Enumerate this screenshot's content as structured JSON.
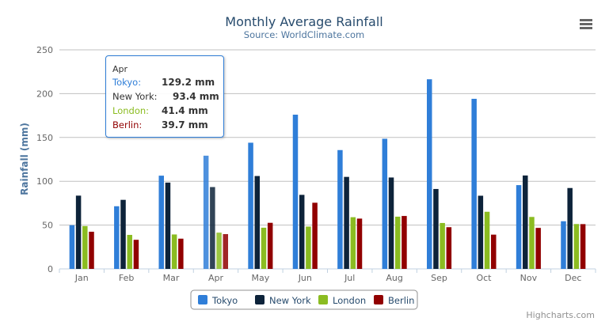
{
  "chart_data": {
    "type": "bar",
    "title": "Monthly Average Rainfall",
    "subtitle": "Source: WorldClimate.com",
    "xlabel": "",
    "ylabel": "Rainfall (mm)",
    "ylim": [
      0,
      250
    ],
    "yticks": [
      "0",
      "50",
      "100",
      "150",
      "200",
      "250"
    ],
    "grid": true,
    "legend_position": "bottom",
    "categories": [
      "Jan",
      "Feb",
      "Mar",
      "Apr",
      "May",
      "Jun",
      "Jul",
      "Aug",
      "Sep",
      "Oct",
      "Nov",
      "Dec"
    ],
    "series": [
      {
        "name": "Tokyo",
        "color": "#2f7ed8",
        "values": [
          49.9,
          71.5,
          106.4,
          129.2,
          144.0,
          176.0,
          135.6,
          148.5,
          216.4,
          194.1,
          95.6,
          54.4
        ]
      },
      {
        "name": "New York",
        "color": "#0d233a",
        "values": [
          83.6,
          78.8,
          98.5,
          93.4,
          106.0,
          84.5,
          105.0,
          104.3,
          91.2,
          83.5,
          106.6,
          92.3
        ]
      },
      {
        "name": "London",
        "color": "#8bbc21",
        "values": [
          48.9,
          38.8,
          39.3,
          41.4,
          47.0,
          48.3,
          59.0,
          59.6,
          52.4,
          65.2,
          59.3,
          51.2
        ]
      },
      {
        "name": "Berlin",
        "color": "#910000",
        "values": [
          42.4,
          33.2,
          34.5,
          39.7,
          52.6,
          75.5,
          57.4,
          60.4,
          47.6,
          39.1,
          46.8,
          51.1
        ]
      }
    ],
    "tooltip": {
      "header": "Apr",
      "rows": [
        {
          "name": "Tokyo:",
          "value": "129.2 mm",
          "color": "#2f7ed8"
        },
        {
          "name": "New York:",
          "value": "93.4 mm",
          "color": "#333333"
        },
        {
          "name": "London:",
          "value": "41.4 mm",
          "color": "#8bbc21"
        },
        {
          "name": "Berlin:",
          "value": "39.7 mm",
          "color": "#910000"
        }
      ]
    },
    "credits": "Highcharts.com"
  },
  "menu_icon": "hamburger-menu-icon"
}
